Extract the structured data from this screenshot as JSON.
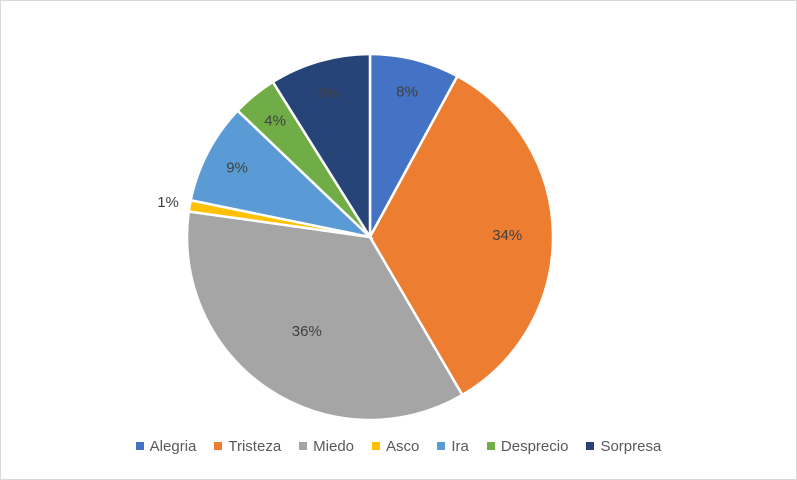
{
  "chart_data": {
    "type": "pie",
    "title": "",
    "categories": [
      "Alegria",
      "Tristeza",
      "Miedo",
      "Asco",
      "Ira",
      "Desprecio",
      "Sorpresa"
    ],
    "values": [
      8,
      34,
      36,
      1,
      9,
      4,
      9
    ],
    "value_labels": [
      "8%",
      "34%",
      "36%",
      "1%",
      "9%",
      "4%",
      "9%"
    ],
    "colors": [
      "#4472c4",
      "#ed7d31",
      "#a5a5a5",
      "#ffc000",
      "#5b9bd5",
      "#70ad47",
      "#264478"
    ],
    "start_angle": "12 o'clock",
    "direction": "clockwise",
    "legend_position": "bottom",
    "grid": false
  },
  "legend": {
    "items": [
      {
        "label": "Alegria",
        "color": "#4472c4"
      },
      {
        "label": "Tristeza",
        "color": "#ed7d31"
      },
      {
        "label": "Miedo",
        "color": "#a5a5a5"
      },
      {
        "label": "Asco",
        "color": "#ffc000"
      },
      {
        "label": "Ira",
        "color": "#5b9bd5"
      },
      {
        "label": "Desprecio",
        "color": "#70ad47"
      },
      {
        "label": "Sorpresa",
        "color": "#264478"
      }
    ]
  }
}
